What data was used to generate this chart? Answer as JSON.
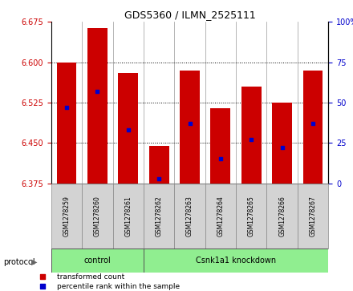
{
  "title": "GDS5360 / ILMN_2525111",
  "samples": [
    "GSM1278259",
    "GSM1278260",
    "GSM1278261",
    "GSM1278262",
    "GSM1278263",
    "GSM1278264",
    "GSM1278265",
    "GSM1278266",
    "GSM1278267"
  ],
  "bar_tops": [
    6.6,
    6.663,
    6.58,
    6.445,
    6.585,
    6.515,
    6.555,
    6.525,
    6.585
  ],
  "bar_bottom": 6.375,
  "percentile_ranks": [
    47,
    57,
    33,
    3,
    37,
    15,
    27,
    22,
    37
  ],
  "bar_color": "#cc0000",
  "dot_color": "#0000cc",
  "ylim": [
    6.375,
    6.675
  ],
  "yticks_left": [
    6.375,
    6.45,
    6.525,
    6.6,
    6.675
  ],
  "yticks_right": [
    0,
    25,
    50,
    75,
    100
  ],
  "left_tick_color": "#cc0000",
  "right_tick_color": "#0000cc",
  "grid_color": "black",
  "groups": [
    {
      "label": "control",
      "start": 0,
      "end": 3,
      "color": "#90ee90"
    },
    {
      "label": "Csnk1a1 knockdown",
      "start": 3,
      "end": 9,
      "color": "#90ee90"
    }
  ],
  "protocol_label": "protocol",
  "legend_items": [
    {
      "color": "#cc0000",
      "label": "transformed count"
    },
    {
      "color": "#0000cc",
      "label": "percentile rank within the sample"
    }
  ],
  "fig_width": 4.4,
  "fig_height": 3.63,
  "dpi": 100,
  "bar_width": 0.65,
  "background_color": "#ffffff",
  "plot_bg": "#ffffff",
  "tick_label_bg": "#d3d3d3"
}
